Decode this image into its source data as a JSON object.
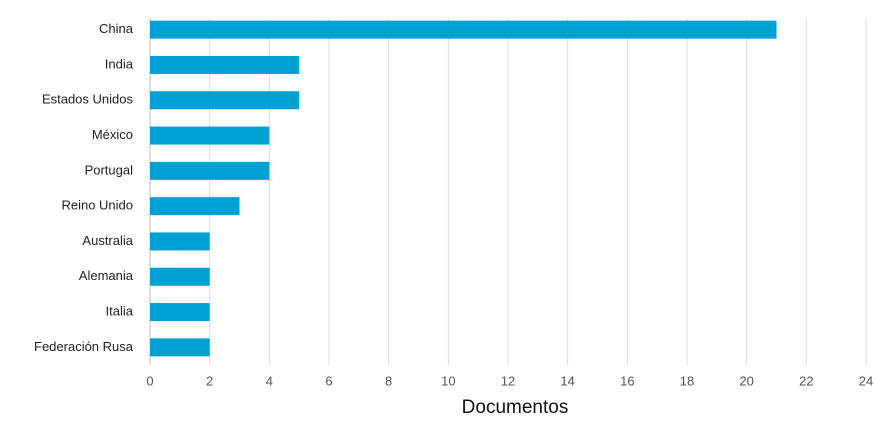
{
  "chart_data": {
    "type": "bar",
    "orientation": "horizontal",
    "categories": [
      "China",
      "India",
      "Estados Unidos",
      "México",
      "Portugal",
      "Reino Unido",
      "Australia",
      "Alemania",
      "Italia",
      "Federación Rusa"
    ],
    "values": [
      21,
      5,
      5,
      4,
      4,
      3,
      2,
      2,
      2,
      2
    ],
    "color": "#00a0d2",
    "xlabel": "Documentos",
    "xlim": [
      0,
      24
    ],
    "xticks": [
      0,
      2,
      4,
      6,
      8,
      10,
      12,
      14,
      16,
      18,
      20,
      22,
      24
    ],
    "grid": true
  }
}
